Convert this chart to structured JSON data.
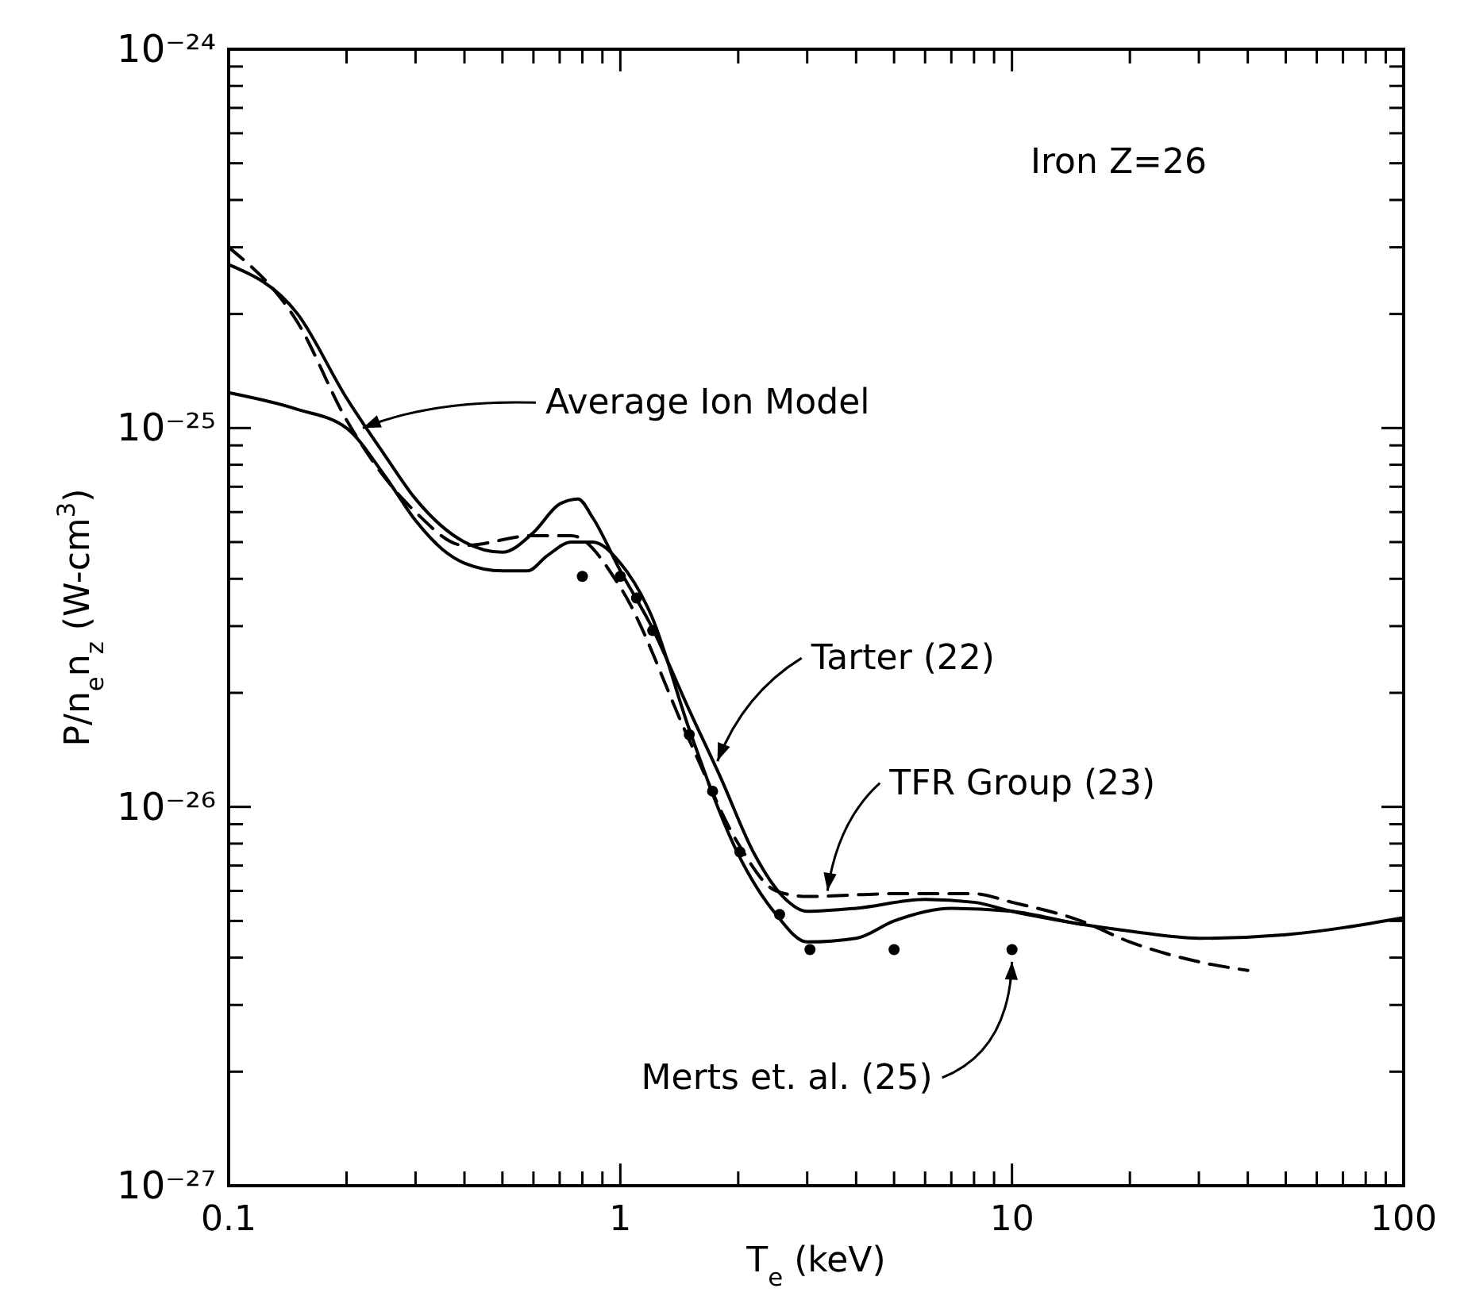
{
  "chart_data": {
    "type": "line",
    "ylabel": "P/n$_{e}$n$_{z}$ (W-cm$^{3}$)",
    "xlabel": "T$_{e}$ (keV)",
    "log": "xy",
    "grid": false,
    "xlim": [
      0.1,
      100
    ],
    "ylim": [
      1e-27,
      1e-24
    ],
    "xticks": [
      {
        "value": 0.1,
        "label": "0.1"
      },
      {
        "value": 0.2,
        "label": null
      },
      {
        "value": 0.3,
        "label": null
      },
      {
        "value": 0.4,
        "label": null
      },
      {
        "value": 0.5,
        "label": null
      },
      {
        "value": 0.6,
        "label": null
      },
      {
        "value": 0.7,
        "label": null
      },
      {
        "value": 0.8,
        "label": null
      },
      {
        "value": 0.9,
        "label": null
      },
      1,
      {
        "value": 2,
        "label": null
      },
      {
        "value": 3,
        "label": null
      },
      {
        "value": 4,
        "label": null
      },
      {
        "value": 5,
        "label": null
      },
      {
        "value": 6,
        "label": null
      },
      {
        "value": 7,
        "label": null
      },
      {
        "value": 8,
        "label": null
      },
      {
        "value": 9,
        "label": null
      },
      10,
      {
        "value": 20,
        "label": null
      },
      {
        "value": 30,
        "label": null
      },
      {
        "value": 40,
        "label": null
      },
      {
        "value": 50,
        "label": null
      },
      {
        "value": 60,
        "label": null
      },
      {
        "value": 70,
        "label": null
      },
      {
        "value": 80,
        "label": null
      },
      {
        "value": 90,
        "label": null
      },
      100
    ],
    "yticks": [
      {
        "value": 1e-27,
        "label": "10⁻²⁷"
      },
      {
        "value": 2e-27,
        "label": null
      },
      {
        "value": 3e-27,
        "label": null
      },
      {
        "value": 4e-27,
        "label": null
      },
      {
        "value": 5e-27,
        "label": null
      },
      {
        "value": 6e-27,
        "label": null
      },
      {
        "value": 7e-27,
        "label": null
      },
      {
        "value": 8e-27,
        "label": null
      },
      {
        "value": 9e-27,
        "label": null
      },
      {
        "value": 1e-26,
        "label": "10⁻²⁶"
      },
      {
        "value": 2e-26,
        "label": null
      },
      {
        "value": 3e-26,
        "label": null
      },
      {
        "value": 4e-26,
        "label": null
      },
      {
        "value": 5e-26,
        "label": null
      },
      {
        "value": 6e-26,
        "label": null
      },
      {
        "value": 7e-26,
        "label": null
      },
      {
        "value": 8e-26,
        "label": null
      },
      {
        "value": 9e-26,
        "label": null
      },
      {
        "value": 1e-25,
        "label": "10⁻²⁵"
      },
      {
        "value": 2e-25,
        "label": null
      },
      {
        "value": 3e-25,
        "label": null
      },
      {
        "value": 4e-25,
        "label": null
      },
      {
        "value": 5e-25,
        "label": null
      },
      {
        "value": 6e-25,
        "label": null
      },
      {
        "value": 7e-25,
        "label": null
      },
      {
        "value": 8e-25,
        "label": null
      },
      {
        "value": 9e-25,
        "label": null
      },
      {
        "value": 1e-24,
        "label": "10⁻²⁴"
      }
    ],
    "series": [
      {
        "line_style": "solid",
        "marker": "none",
        "color": "#000000",
        "x": [
          0.1,
          0.15,
          0.2,
          0.25,
          0.3,
          0.35,
          0.4,
          0.5,
          0.58,
          0.65,
          0.75,
          0.85,
          1,
          1.2,
          1.5,
          2,
          2.5,
          3,
          4,
          5,
          7,
          10,
          15,
          20,
          30,
          50,
          100
        ],
        "values": [
          1.24e-25,
          1.12e-25,
          1e-25,
          7.5e-26,
          5.7e-26,
          4.8e-26,
          4.4e-26,
          4.2e-26,
          4.2e-26,
          4.6e-26,
          5e-26,
          5e-26,
          4.4e-26,
          3.2e-26,
          1.6e-26,
          7.5e-27,
          5.2e-27,
          4.4e-27,
          4.5e-27,
          5e-27,
          5.4e-27,
          5.3e-27,
          4.9e-27,
          4.7e-27,
          4.5e-27,
          4.6e-27,
          5.1e-27
        ]
      },
      {
        "line_style": "solid",
        "marker": "none",
        "color": "#000000",
        "x": [
          0.1,
          0.15,
          0.2,
          0.25,
          0.3,
          0.4,
          0.5,
          0.6,
          0.7,
          0.78,
          0.85,
          1,
          1.2,
          1.5,
          1.8,
          2.2,
          2.6,
          3,
          4,
          6,
          8,
          10,
          15
        ],
        "values": [
          2.7e-25,
          2e-25,
          1.2e-25,
          8.5e-26,
          6.5e-26,
          5e-26,
          4.7e-26,
          5.3e-26,
          6.3e-26,
          6.5e-26,
          5.8e-26,
          4.2e-26,
          3e-26,
          1.8e-26,
          1.2e-26,
          7.5e-27,
          5.8e-27,
          5.3e-27,
          5.4e-27,
          5.7e-27,
          5.6e-27,
          5.3e-27,
          4.9e-27
        ]
      },
      {
        "line_style": "dashed",
        "marker": "none",
        "color": "#000000",
        "x": [
          0.1,
          0.15,
          0.2,
          0.3,
          0.4,
          0.6,
          0.75,
          1,
          1.5,
          2,
          2.5,
          3,
          5,
          8,
          10,
          15,
          20,
          30,
          40
        ],
        "values": [
          3e-25,
          1.9e-25,
          1.05e-25,
          6e-26,
          4.9e-26,
          5.2e-26,
          5.2e-26,
          3.8e-26,
          1.5e-26,
          8e-27,
          6e-27,
          5.8e-27,
          5.9e-27,
          5.9e-27,
          5.6e-27,
          5e-27,
          4.4e-27,
          3.9e-27,
          3.7e-27
        ]
      },
      {
        "type": "scatter",
        "marker": "circle",
        "color": "#000000",
        "x": [
          0.8,
          1.0,
          1.1,
          1.21,
          1.5,
          1.72,
          2.02,
          2.55,
          3.05,
          5.0,
          10
        ],
        "values": [
          4.06e-26,
          4.06e-26,
          3.56e-26,
          2.92e-26,
          1.55e-26,
          1.1e-26,
          7.6e-27,
          5.2e-27,
          4.2e-27,
          4.2e-27,
          4.2e-27
        ]
      }
    ],
    "annotations": [
      "Iron Z=26",
      {
        "text": "Average Ion Model",
        "x": 0.22,
        "y": 1e-25
      },
      {
        "text": "Tarter (22)",
        "x": 1.77,
        "y": 1.32e-26
      },
      {
        "text": "TFR Group (23)",
        "x": 3.38,
        "y": 6e-27
      },
      {
        "text": "Merts et. al. (25)",
        "x": 10,
        "y": 3.9e-27
      }
    ]
  }
}
